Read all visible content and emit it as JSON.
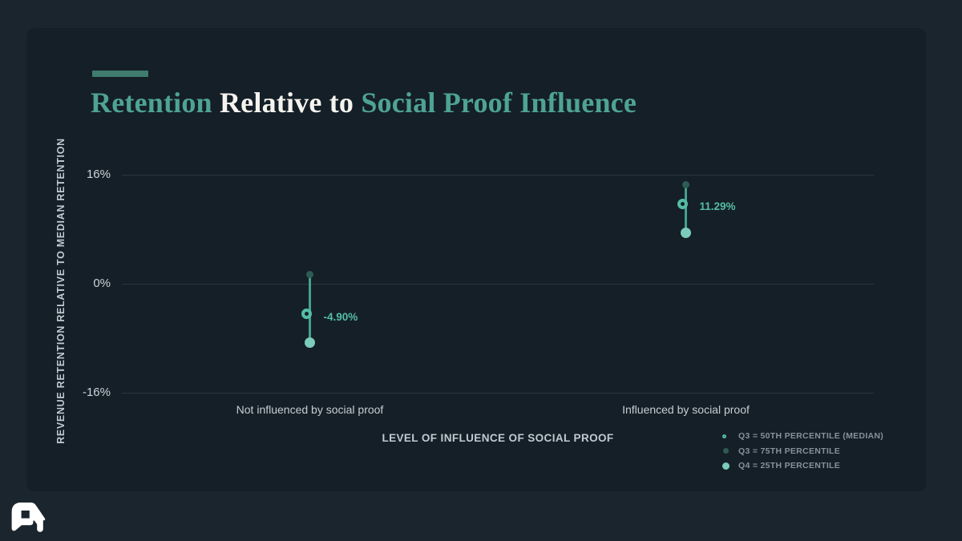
{
  "colors": {
    "bg": "#1b252d",
    "card_bg": "#151f27",
    "accent_teal": "#4ea394",
    "title_white": "#f4f3ee",
    "accent_bar": "#3f7c6d",
    "gridline": "#2c363e",
    "tick_text": "#ccd4d9",
    "axis_label": "#c1cad1",
    "category_text": "#c6ced4",
    "legend_text": "#87919a",
    "marker_ring": "#54bda4",
    "marker_line": "#44a08c",
    "dot_75": "#2d5c54",
    "dot_25": "#7bccba",
    "value_label": "#55bda5",
    "logo": "#ffffff"
  },
  "header": {
    "title_parts": [
      {
        "text": "Retention ",
        "color_key": "accent_teal"
      },
      {
        "text": "Relative to ",
        "color_key": "title_white"
      },
      {
        "text": "Social Proof Influence",
        "color_key": "accent_teal"
      }
    ]
  },
  "chart_data": {
    "type": "scatter",
    "subtype": "dot-range-percentiles",
    "title": "Retention Relative to Social Proof Influence",
    "xlabel": "LEVEL OF INFLUENCE OF SOCIAL PROOF",
    "ylabel": "REVENUE RETENTION RELATIVE TO MEDIAN RETENTION",
    "ylim": [
      -16,
      16
    ],
    "yticks": [
      {
        "value": 16,
        "label": "16%"
      },
      {
        "value": 0,
        "label": "0%"
      },
      {
        "value": -16,
        "label": "-16%"
      }
    ],
    "grid": "horizontal",
    "legend_position": "bottom-right",
    "categories": [
      "Not influenced by social proof",
      "Influenced by social proof"
    ],
    "points": [
      {
        "category": "Not influenced by social proof",
        "p75": 1.4,
        "median": -4.9,
        "p25": -8.6,
        "median_label": "-4.90%"
      },
      {
        "category": "Influenced by social proof",
        "p75": 14.5,
        "median": 11.29,
        "p25": 7.5,
        "median_label": "11.29%"
      }
    ],
    "legend": [
      {
        "marker": "open-ring",
        "label": "Q3 = 50TH PERCENTILE (MEDIAN)"
      },
      {
        "marker": "small-dark-dot",
        "label": "Q3 = 75TH PERCENTILE"
      },
      {
        "marker": "light-dot",
        "label": "Q4 = 25TH PERCENTILE"
      }
    ]
  }
}
